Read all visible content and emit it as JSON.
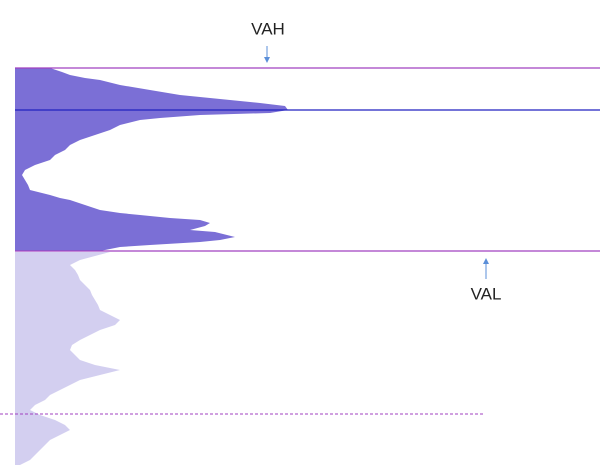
{
  "annotations": {
    "vah": "VAH",
    "val": "VAL"
  }
}
